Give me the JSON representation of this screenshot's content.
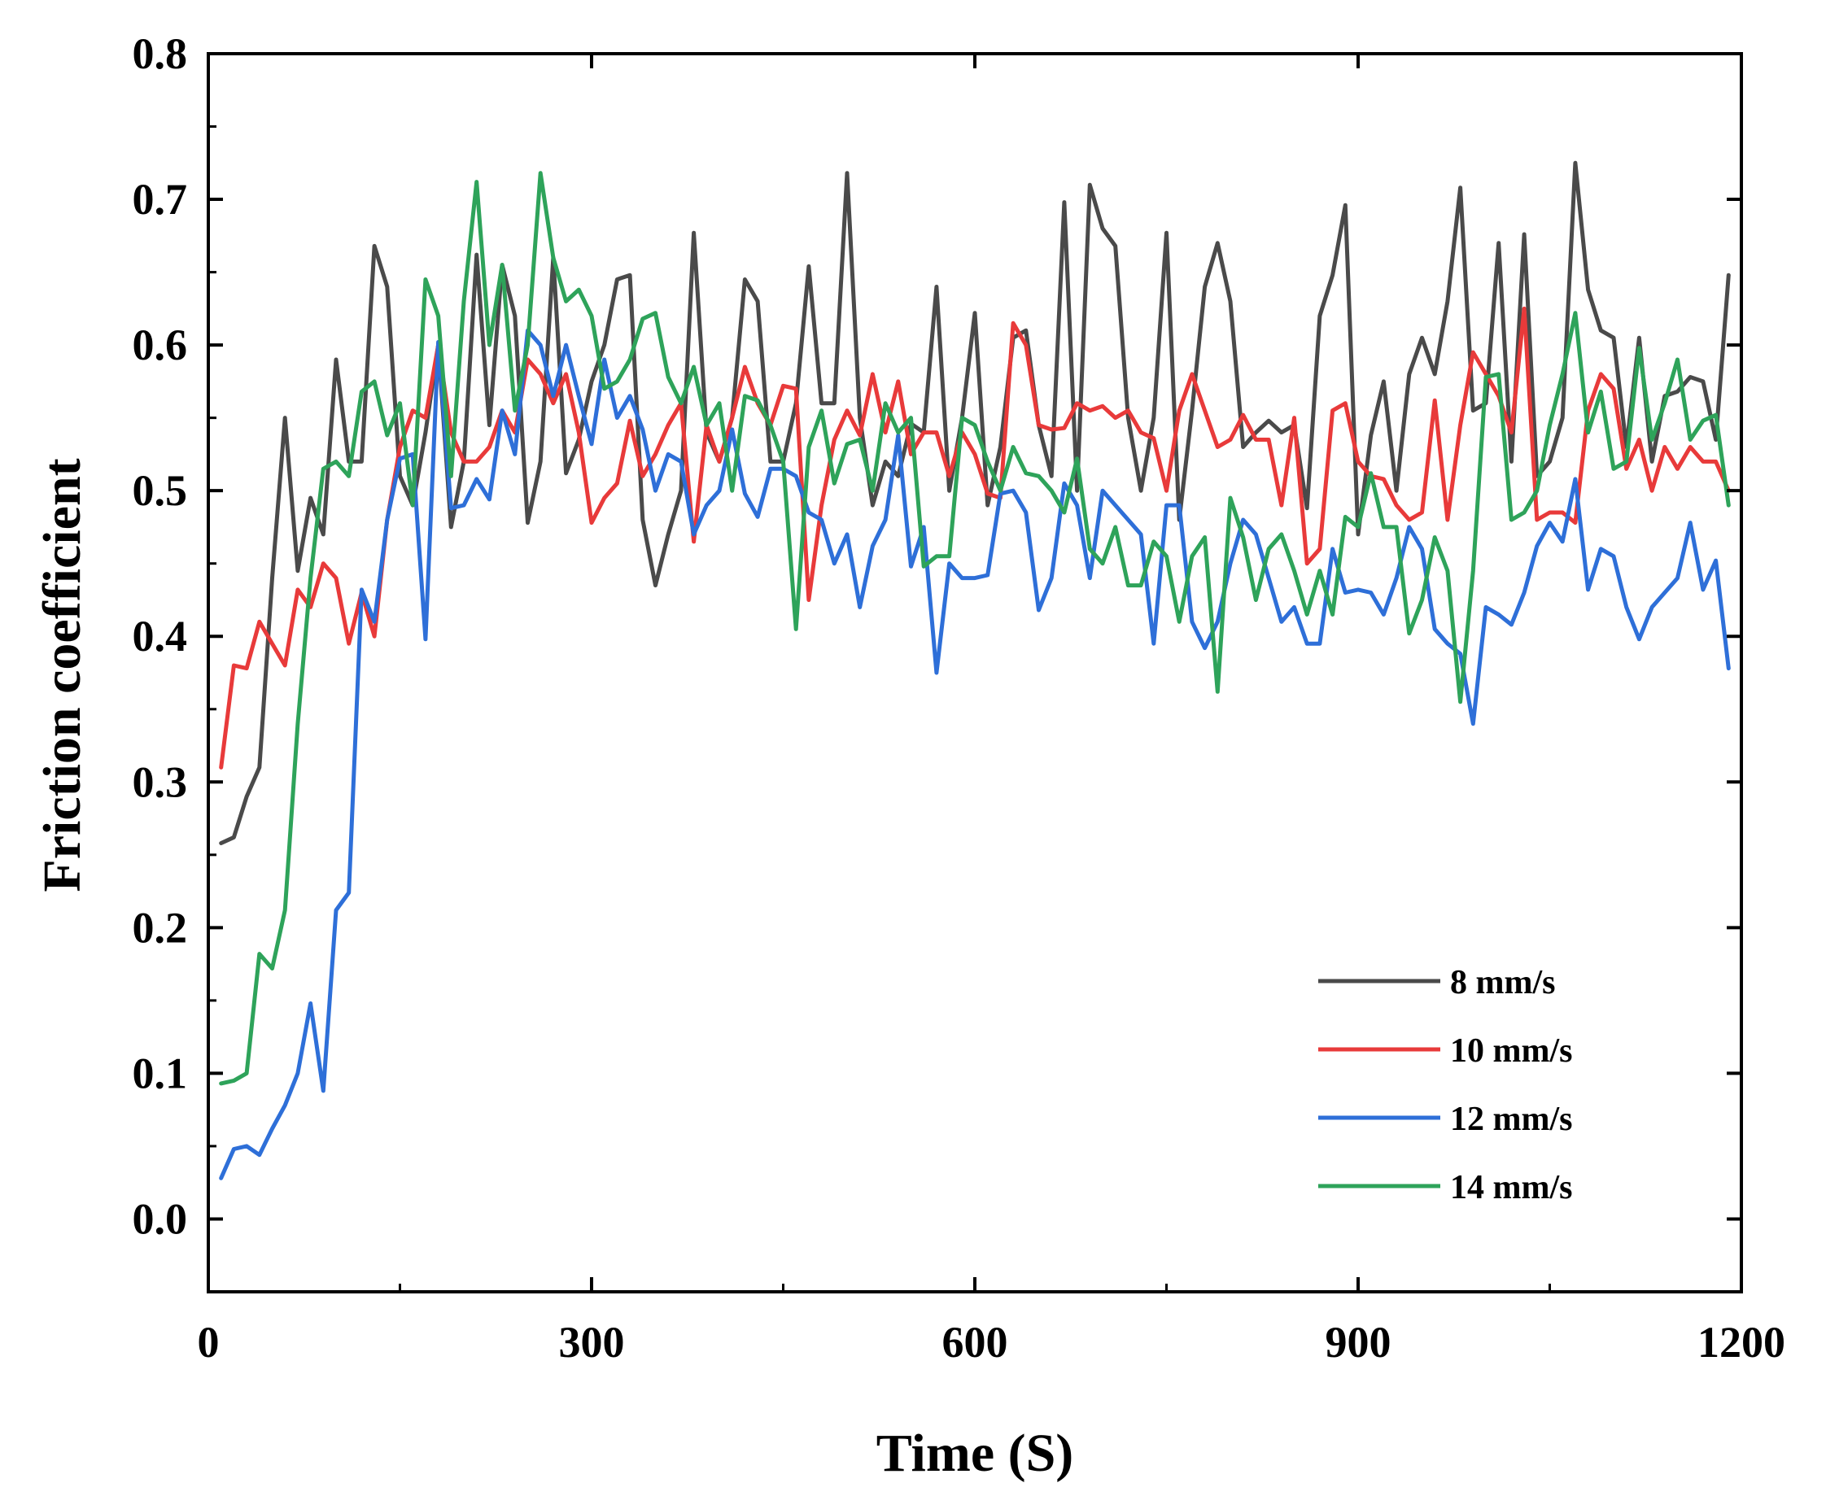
{
  "chart_data": {
    "type": "line",
    "title": "",
    "xlabel": "Time (S)",
    "ylabel": "Friction coefficient",
    "xlim": [
      0,
      1200
    ],
    "ylim": [
      -0.05,
      0.8
    ],
    "xticks": [
      0,
      300,
      600,
      900,
      1200
    ],
    "xtick_labels": [
      "0",
      "300",
      "600",
      "900",
      "1200"
    ],
    "yticks": [
      0.0,
      0.1,
      0.2,
      0.3,
      0.4,
      0.5,
      0.6,
      0.7,
      0.8
    ],
    "ytick_labels": [
      "0.0",
      "0.1",
      "0.2",
      "0.3",
      "0.4",
      "0.5",
      "0.6",
      "0.7",
      "0.8"
    ],
    "legend_position": "bottom-right",
    "grid": false,
    "series": [
      {
        "name": "8 mm/s",
        "color": "#4a4a4a",
        "x": [
          10,
          20,
          30,
          40,
          50,
          60,
          70,
          80,
          90,
          100,
          110,
          120,
          130,
          140,
          150,
          160,
          170,
          180,
          190,
          200,
          210,
          220,
          230,
          240,
          250,
          260,
          270,
          280,
          290,
          300,
          310,
          320,
          330,
          340,
          350,
          360,
          370,
          380,
          390,
          400,
          410,
          420,
          430,
          440,
          450,
          460,
          470,
          480,
          490,
          500,
          510,
          520,
          530,
          540,
          550,
          560,
          570,
          580,
          590,
          600,
          610,
          620,
          630,
          640,
          650,
          660,
          670,
          680,
          690,
          700,
          710,
          720,
          730,
          740,
          750,
          760,
          770,
          780,
          790,
          800,
          810,
          820,
          830,
          840,
          850,
          860,
          870,
          880,
          890,
          900,
          910,
          920,
          930,
          940,
          950,
          960,
          970,
          980,
          990,
          1000,
          1010,
          1020,
          1030,
          1040,
          1050,
          1060,
          1070,
          1080,
          1090,
          1100,
          1110,
          1120,
          1130,
          1140,
          1150,
          1160,
          1170,
          1180,
          1190
        ],
        "values": [
          0.258,
          0.262,
          0.29,
          0.31,
          0.44,
          0.55,
          0.445,
          0.495,
          0.47,
          0.59,
          0.52,
          0.52,
          0.668,
          0.64,
          0.51,
          0.49,
          0.54,
          0.6,
          0.475,
          0.52,
          0.662,
          0.545,
          0.655,
          0.62,
          0.478,
          0.52,
          0.66,
          0.512,
          0.535,
          0.575,
          0.6,
          0.645,
          0.648,
          0.48,
          0.435,
          0.47,
          0.5,
          0.677,
          0.54,
          0.52,
          0.55,
          0.645,
          0.63,
          0.52,
          0.52,
          0.56,
          0.654,
          0.56,
          0.56,
          0.718,
          0.55,
          0.49,
          0.52,
          0.51,
          0.546,
          0.54,
          0.64,
          0.5,
          0.55,
          0.622,
          0.49,
          0.53,
          0.605,
          0.61,
          0.545,
          0.51,
          0.698,
          0.5,
          0.71,
          0.68,
          0.668,
          0.55,
          0.5,
          0.55,
          0.677,
          0.48,
          0.555,
          0.64,
          0.67,
          0.63,
          0.53,
          0.54,
          0.548,
          0.54,
          0.545,
          0.488,
          0.62,
          0.648,
          0.696,
          0.47,
          0.538,
          0.575,
          0.5,
          0.58,
          0.605,
          0.58,
          0.63,
          0.708,
          0.555,
          0.56,
          0.67,
          0.52,
          0.676,
          0.51,
          0.52,
          0.55,
          0.725,
          0.638,
          0.61,
          0.605,
          0.53,
          0.605,
          0.52,
          0.565,
          0.568,
          0.578,
          0.575,
          0.535,
          0.648
        ]
      },
      {
        "name": "10 mm/s",
        "color": "#e83a3a",
        "x": [
          10,
          20,
          30,
          40,
          50,
          60,
          70,
          80,
          90,
          100,
          110,
          120,
          130,
          140,
          150,
          160,
          170,
          180,
          190,
          200,
          210,
          220,
          230,
          240,
          250,
          260,
          270,
          280,
          290,
          300,
          310,
          320,
          330,
          340,
          350,
          360,
          370,
          380,
          390,
          400,
          410,
          420,
          430,
          440,
          450,
          460,
          470,
          480,
          490,
          500,
          510,
          520,
          530,
          540,
          550,
          560,
          570,
          580,
          590,
          600,
          610,
          620,
          630,
          640,
          650,
          660,
          670,
          680,
          690,
          700,
          710,
          720,
          730,
          740,
          750,
          760,
          770,
          780,
          790,
          800,
          810,
          820,
          830,
          840,
          850,
          860,
          870,
          880,
          890,
          900,
          910,
          920,
          930,
          940,
          950,
          960,
          970,
          980,
          990,
          1000,
          1010,
          1020,
          1030,
          1040,
          1050,
          1060,
          1070,
          1080,
          1090,
          1100,
          1110,
          1120,
          1130,
          1140,
          1150,
          1160,
          1170,
          1180,
          1190
        ],
        "values": [
          0.31,
          0.38,
          0.378,
          0.41,
          0.395,
          0.38,
          0.432,
          0.42,
          0.45,
          0.44,
          0.395,
          0.43,
          0.4,
          0.48,
          0.53,
          0.555,
          0.55,
          0.6,
          0.54,
          0.52,
          0.52,
          0.53,
          0.555,
          0.54,
          0.59,
          0.58,
          0.56,
          0.58,
          0.54,
          0.478,
          0.495,
          0.505,
          0.548,
          0.51,
          0.525,
          0.545,
          0.56,
          0.465,
          0.545,
          0.52,
          0.55,
          0.585,
          0.56,
          0.545,
          0.572,
          0.57,
          0.425,
          0.49,
          0.535,
          0.555,
          0.538,
          0.58,
          0.54,
          0.575,
          0.525,
          0.54,
          0.54,
          0.51,
          0.54,
          0.525,
          0.498,
          0.495,
          0.615,
          0.6,
          0.545,
          0.542,
          0.543,
          0.56,
          0.555,
          0.558,
          0.55,
          0.555,
          0.54,
          0.536,
          0.5,
          0.555,
          0.58,
          0.555,
          0.53,
          0.535,
          0.552,
          0.535,
          0.535,
          0.49,
          0.55,
          0.45,
          0.46,
          0.555,
          0.56,
          0.52,
          0.51,
          0.508,
          0.49,
          0.48,
          0.485,
          0.562,
          0.48,
          0.545,
          0.595,
          0.58,
          0.565,
          0.54,
          0.625,
          0.48,
          0.485,
          0.485,
          0.478,
          0.555,
          0.58,
          0.57,
          0.515,
          0.535,
          0.5,
          0.53,
          0.515,
          0.53,
          0.52,
          0.52,
          0.5
        ]
      },
      {
        "name": "12 mm/s",
        "color": "#2e6fd8",
        "x": [
          10,
          20,
          30,
          40,
          50,
          60,
          70,
          80,
          90,
          100,
          110,
          120,
          130,
          140,
          150,
          160,
          170,
          180,
          190,
          200,
          210,
          220,
          230,
          240,
          250,
          260,
          270,
          280,
          290,
          300,
          310,
          320,
          330,
          340,
          350,
          360,
          370,
          380,
          390,
          400,
          410,
          420,
          430,
          440,
          450,
          460,
          470,
          480,
          490,
          500,
          510,
          520,
          530,
          540,
          550,
          560,
          570,
          580,
          590,
          600,
          610,
          620,
          630,
          640,
          650,
          660,
          670,
          680,
          690,
          700,
          710,
          720,
          730,
          740,
          750,
          760,
          770,
          780,
          790,
          800,
          810,
          820,
          830,
          840,
          850,
          860,
          870,
          880,
          890,
          900,
          910,
          920,
          930,
          940,
          950,
          960,
          970,
          980,
          990,
          1000,
          1010,
          1020,
          1030,
          1040,
          1050,
          1060,
          1070,
          1080,
          1090,
          1100,
          1110,
          1120,
          1130,
          1140,
          1150,
          1160,
          1170,
          1180,
          1190
        ],
        "values": [
          0.028,
          0.048,
          0.05,
          0.044,
          0.062,
          0.078,
          0.1,
          0.148,
          0.088,
          0.212,
          0.224,
          0.432,
          0.41,
          0.48,
          0.522,
          0.525,
          0.398,
          0.602,
          0.488,
          0.49,
          0.508,
          0.494,
          0.555,
          0.525,
          0.61,
          0.6,
          0.565,
          0.6,
          0.565,
          0.532,
          0.59,
          0.55,
          0.565,
          0.542,
          0.5,
          0.525,
          0.52,
          0.47,
          0.49,
          0.5,
          0.542,
          0.498,
          0.482,
          0.515,
          0.515,
          0.51,
          0.485,
          0.48,
          0.45,
          0.47,
          0.42,
          0.462,
          0.48,
          0.538,
          0.448,
          0.475,
          0.375,
          0.45,
          0.44,
          0.44,
          0.442,
          0.498,
          0.5,
          0.485,
          0.418,
          0.44,
          0.505,
          0.49,
          0.44,
          0.5,
          0.49,
          0.48,
          0.47,
          0.395,
          0.49,
          0.49,
          0.41,
          0.392,
          0.41,
          0.45,
          0.48,
          0.47,
          0.44,
          0.41,
          0.42,
          0.395,
          0.395,
          0.46,
          0.43,
          0.432,
          0.43,
          0.415,
          0.44,
          0.475,
          0.46,
          0.405,
          0.395,
          0.388,
          0.34,
          0.42,
          0.415,
          0.408,
          0.43,
          0.462,
          0.478,
          0.465,
          0.508,
          0.432,
          0.46,
          0.455,
          0.42,
          0.398,
          0.42,
          0.43,
          0.44,
          0.478,
          0.432,
          0.452,
          0.378
        ]
      },
      {
        "name": "14 mm/s",
        "color": "#2ea35a",
        "x": [
          10,
          20,
          30,
          40,
          50,
          60,
          70,
          80,
          90,
          100,
          110,
          120,
          130,
          140,
          150,
          160,
          170,
          180,
          190,
          200,
          210,
          220,
          230,
          240,
          250,
          260,
          270,
          280,
          290,
          300,
          310,
          320,
          330,
          340,
          350,
          360,
          370,
          380,
          390,
          400,
          410,
          420,
          430,
          440,
          450,
          460,
          470,
          480,
          490,
          500,
          510,
          520,
          530,
          540,
          550,
          560,
          570,
          580,
          590,
          600,
          610,
          620,
          630,
          640,
          650,
          660,
          670,
          680,
          690,
          700,
          710,
          720,
          730,
          740,
          750,
          760,
          770,
          780,
          790,
          800,
          810,
          820,
          830,
          840,
          850,
          860,
          870,
          880,
          890,
          900,
          910,
          920,
          930,
          940,
          950,
          960,
          970,
          980,
          990,
          1000,
          1010,
          1020,
          1030,
          1040,
          1050,
          1060,
          1070,
          1080,
          1090,
          1100,
          1110,
          1120,
          1130,
          1140,
          1150,
          1160,
          1170,
          1180,
          1190
        ],
        "values": [
          0.093,
          0.095,
          0.1,
          0.182,
          0.172,
          0.212,
          0.34,
          0.44,
          0.515,
          0.52,
          0.51,
          0.568,
          0.575,
          0.538,
          0.56,
          0.49,
          0.645,
          0.62,
          0.51,
          0.63,
          0.712,
          0.6,
          0.655,
          0.555,
          0.6,
          0.718,
          0.66,
          0.63,
          0.638,
          0.62,
          0.57,
          0.575,
          0.59,
          0.618,
          0.622,
          0.578,
          0.56,
          0.585,
          0.545,
          0.56,
          0.5,
          0.565,
          0.562,
          0.545,
          0.52,
          0.405,
          0.53,
          0.555,
          0.505,
          0.532,
          0.535,
          0.5,
          0.56,
          0.54,
          0.55,
          0.448,
          0.455,
          0.455,
          0.55,
          0.545,
          0.52,
          0.5,
          0.53,
          0.512,
          0.51,
          0.5,
          0.485,
          0.522,
          0.46,
          0.45,
          0.475,
          0.435,
          0.435,
          0.465,
          0.455,
          0.41,
          0.455,
          0.468,
          0.362,
          0.495,
          0.468,
          0.425,
          0.46,
          0.47,
          0.445,
          0.415,
          0.445,
          0.415,
          0.482,
          0.475,
          0.512,
          0.475,
          0.475,
          0.402,
          0.425,
          0.468,
          0.445,
          0.355,
          0.445,
          0.578,
          0.58,
          0.48,
          0.485,
          0.5,
          0.545,
          0.58,
          0.622,
          0.54,
          0.568,
          0.515,
          0.52,
          0.598,
          0.535,
          0.56,
          0.59,
          0.535,
          0.548,
          0.552,
          0.49
        ]
      }
    ]
  }
}
